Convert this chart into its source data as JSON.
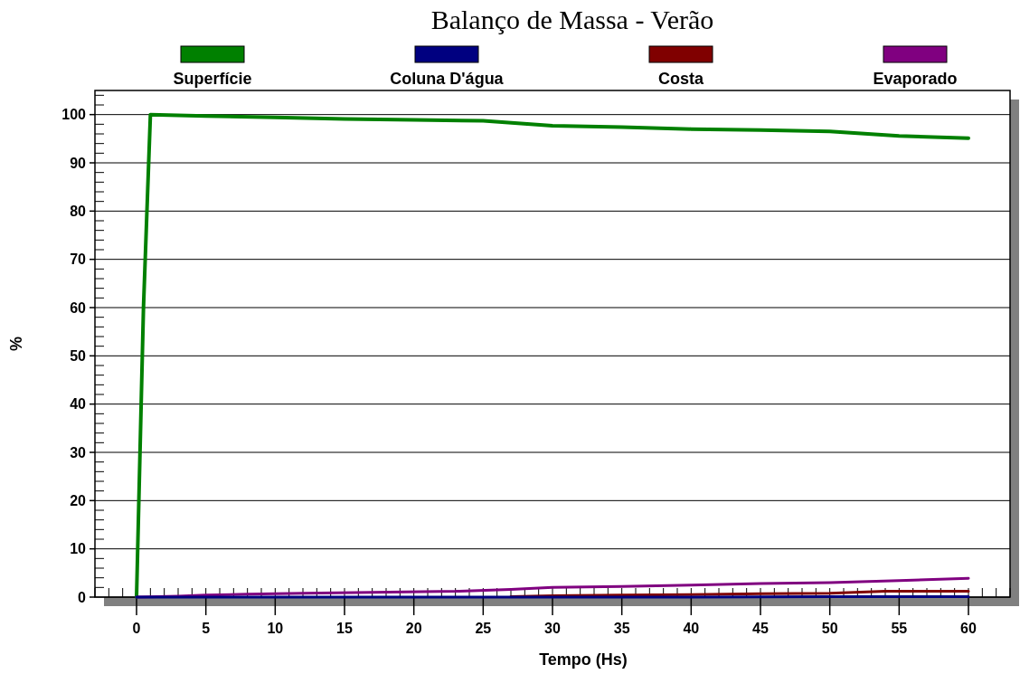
{
  "chart_data": {
    "type": "line",
    "title": "Balanço de Massa - Verão",
    "xlabel": "Tempo (Hs)",
    "ylabel": "%",
    "xlim": [
      -3,
      63
    ],
    "xticks": [
      0,
      5,
      10,
      15,
      20,
      25,
      30,
      35,
      40,
      45,
      50,
      55,
      60
    ],
    "ylim": [
      0,
      105
    ],
    "yticks": [
      0,
      10,
      20,
      30,
      40,
      50,
      60,
      70,
      80,
      90,
      100
    ],
    "grid": "y",
    "legend": "top",
    "marker": "none",
    "line_style": "solid",
    "series": [
      {
        "name": "Superfície",
        "color": "#008000",
        "x": [
          0,
          0.5,
          1,
          5,
          10,
          15,
          20,
          25,
          30,
          35,
          40,
          45,
          50,
          55,
          60
        ],
        "values": [
          0,
          60,
          100,
          99.7,
          99.4,
          99.1,
          98.9,
          98.7,
          97.7,
          97.4,
          97.0,
          96.8,
          96.5,
          95.6,
          95.1
        ]
      },
      {
        "name": "Coluna D'água",
        "color": "#000080",
        "x": [
          0,
          10,
          20,
          30,
          40,
          50,
          60
        ],
        "values": [
          0,
          0,
          0,
          0,
          0,
          0.1,
          0.1
        ]
      },
      {
        "name": "Costa",
        "color": "#800000",
        "x": [
          27,
          30,
          35,
          40,
          45,
          50,
          54,
          60
        ],
        "values": [
          0.1,
          0.3,
          0.4,
          0.5,
          0.7,
          0.8,
          1.2,
          1.2
        ]
      },
      {
        "name": "Evaporado",
        "color": "#800080",
        "x": [
          0,
          3,
          5,
          8,
          12,
          17,
          23,
          27,
          30,
          35,
          40,
          45,
          50,
          55,
          60
        ],
        "values": [
          0,
          0.2,
          0.4,
          0.6,
          0.8,
          1.0,
          1.2,
          1.6,
          2.0,
          2.2,
          2.5,
          2.8,
          3.0,
          3.4,
          3.9
        ]
      }
    ]
  }
}
